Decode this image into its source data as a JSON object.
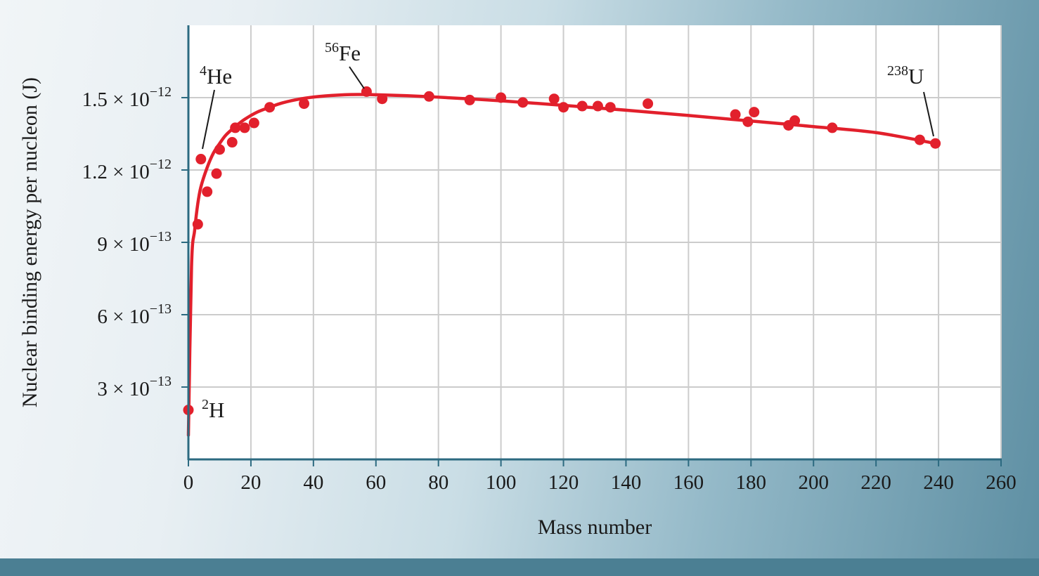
{
  "chart_data": {
    "type": "scatter",
    "title": "",
    "xlabel": "Mass number",
    "ylabel": "Nuclear binding energy per nucleon (J)",
    "xlim": [
      0,
      260
    ],
    "ylim": [
      0,
      1.8e-12
    ],
    "x_ticks": [
      0,
      20,
      40,
      60,
      80,
      100,
      120,
      140,
      160,
      180,
      200,
      220,
      240,
      260
    ],
    "y_ticks": [
      {
        "value": 3e-13,
        "mantissa": "3",
        "exponent": "−13"
      },
      {
        "value": 6e-13,
        "mantissa": "6",
        "exponent": "−13"
      },
      {
        "value": 9e-13,
        "mantissa": "9",
        "exponent": "−13"
      },
      {
        "value": 1.2e-12,
        "mantissa": "1.2",
        "exponent": "−12"
      },
      {
        "value": 1.5e-12,
        "mantissa": "1.5",
        "exponent": "−12"
      }
    ],
    "times_sign": "×",
    "tick_base": "10",
    "grid": true,
    "series": [
      {
        "color": "#e2202c",
        "points": [
          [
            0,
            2.05e-13
          ],
          [
            3,
            9.75e-13
          ],
          [
            4,
            1.245e-12
          ],
          [
            6,
            1.11e-12
          ],
          [
            9,
            1.185e-12
          ],
          [
            10,
            1.285e-12
          ],
          [
            14,
            1.315e-12
          ],
          [
            15,
            1.375e-12
          ],
          [
            18,
            1.375e-12
          ],
          [
            21,
            1.395e-12
          ],
          [
            26,
            1.46e-12
          ],
          [
            37,
            1.475e-12
          ],
          [
            57,
            1.525e-12
          ],
          [
            62,
            1.495e-12
          ],
          [
            77,
            1.505e-12
          ],
          [
            90,
            1.49e-12
          ],
          [
            100,
            1.5e-12
          ],
          [
            107,
            1.48e-12
          ],
          [
            117,
            1.495e-12
          ],
          [
            120,
            1.46e-12
          ],
          [
            126,
            1.465e-12
          ],
          [
            131,
            1.465e-12
          ],
          [
            135,
            1.46e-12
          ],
          [
            147,
            1.475e-12
          ],
          [
            175,
            1.43e-12
          ],
          [
            179,
            1.4e-12
          ],
          [
            181,
            1.44e-12
          ],
          [
            192,
            1.385e-12
          ],
          [
            194,
            1.405e-12
          ],
          [
            206,
            1.375e-12
          ],
          [
            234,
            1.325e-12
          ],
          [
            239,
            1.31e-12
          ]
        ]
      }
    ],
    "trend_curve": {
      "color": "#e2202c",
      "x": [
        0,
        1,
        2,
        3,
        4,
        6,
        8,
        10,
        12,
        15,
        18,
        22,
        26,
        30,
        36,
        42,
        50,
        56,
        60,
        70,
        80,
        100,
        120,
        140,
        160,
        180,
        200,
        220,
        239
      ],
      "y": [
        1e-13,
        8e-13,
        9.5e-13,
        1.06e-12,
        1.13e-12,
        1.21e-12,
        1.27e-12,
        1.31e-12,
        1.345e-12,
        1.38e-12,
        1.41e-12,
        1.44e-12,
        1.46e-12,
        1.478e-12,
        1.495e-12,
        1.505e-12,
        1.512e-12,
        1.513e-12,
        1.512e-12,
        1.508e-12,
        1.502e-12,
        1.487e-12,
        1.468e-12,
        1.448e-12,
        1.426e-12,
        1.403e-12,
        1.38e-12,
        1.355e-12,
        1.31e-12
      ]
    },
    "annotations": [
      {
        "mass": "2",
        "symbol": "H",
        "x": 0,
        "y": 2.05e-13
      },
      {
        "mass": "4",
        "symbol": "He",
        "x": 4,
        "y": 1.245e-12
      },
      {
        "mass": "56",
        "symbol": "Fe",
        "x": 57,
        "y": 1.525e-12
      },
      {
        "mass": "238",
        "symbol": "U",
        "x": 239,
        "y": 1.31e-12
      }
    ],
    "colors": {
      "data": "#e2202c",
      "grid": "#cccccc",
      "axis": "#2c6a80",
      "plot_background": "#ffffff"
    }
  }
}
